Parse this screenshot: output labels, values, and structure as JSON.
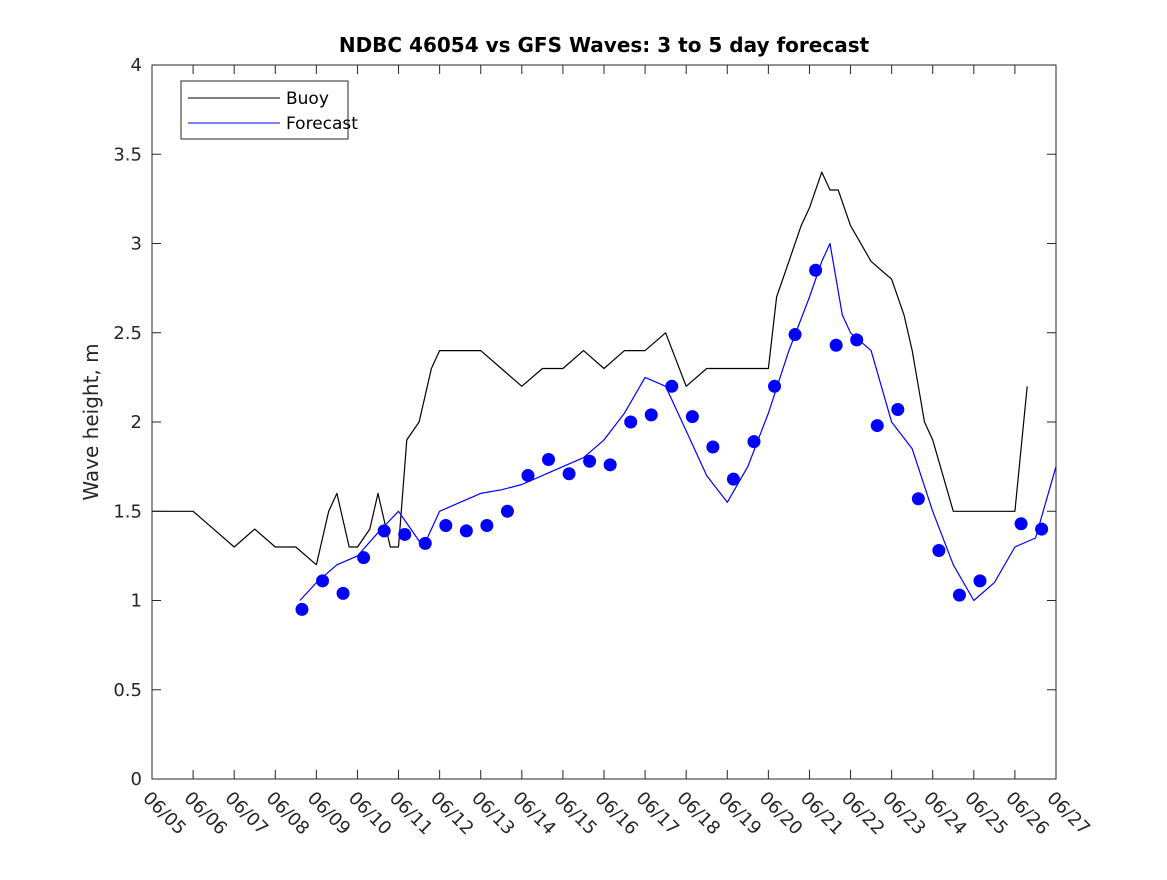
{
  "chart_data": {
    "type": "line",
    "title": "NDBC 46054 vs GFS Waves: 3 to 5 day forecast",
    "xlabel": "",
    "ylabel": "Wave height, m",
    "xlim": [
      "06/05",
      "06/27"
    ],
    "ylim": [
      0,
      4
    ],
    "y_ticks": [
      0,
      0.5,
      1,
      1.5,
      2,
      2.5,
      3,
      3.5,
      4
    ],
    "x_ticks": [
      "06/05",
      "06/06",
      "06/07",
      "06/08",
      "06/09",
      "06/10",
      "06/11",
      "06/12",
      "06/13",
      "06/14",
      "06/15",
      "06/16",
      "06/17",
      "06/18",
      "06/19",
      "06/20",
      "06/21",
      "06/22",
      "06/23",
      "06/24",
      "06/25",
      "06/26",
      "06/27"
    ],
    "grid": false,
    "legend": {
      "placement": "top-left",
      "entries": [
        "Buoy",
        "Forecast"
      ]
    },
    "colors": {
      "buoy": "#000000",
      "forecast": "#0000ff",
      "axes": "#262626"
    },
    "series": [
      {
        "name": "Buoy",
        "style": "line",
        "x": [
          5.0,
          5.5,
          6.0,
          6.5,
          7.0,
          7.5,
          8.0,
          8.5,
          9.0,
          9.3,
          9.5,
          9.8,
          10.0,
          10.3,
          10.5,
          10.8,
          11.0,
          11.2,
          11.5,
          11.8,
          12.0,
          12.5,
          13.0,
          13.5,
          14.0,
          14.5,
          15.0,
          15.5,
          16.0,
          16.5,
          17.0,
          17.5,
          18.0,
          18.5,
          19.0,
          19.5,
          20.0,
          20.2,
          20.5,
          20.8,
          21.0,
          21.3,
          21.5,
          21.7,
          22.0,
          22.5,
          23.0,
          23.3,
          23.5,
          23.8,
          24.0,
          24.5,
          25.0,
          25.5,
          26.0,
          26.3
        ],
        "y": [
          1.5,
          1.5,
          1.5,
          1.4,
          1.3,
          1.4,
          1.3,
          1.3,
          1.2,
          1.5,
          1.6,
          1.3,
          1.3,
          1.4,
          1.6,
          1.3,
          1.3,
          1.9,
          2.0,
          2.3,
          2.4,
          2.4,
          2.4,
          2.3,
          2.2,
          2.3,
          2.3,
          2.4,
          2.3,
          2.4,
          2.4,
          2.5,
          2.2,
          2.3,
          2.3,
          2.3,
          2.3,
          2.7,
          2.9,
          3.1,
          3.2,
          3.4,
          3.3,
          3.3,
          3.1,
          2.9,
          2.8,
          2.6,
          2.4,
          2.0,
          1.9,
          1.5,
          1.5,
          1.5,
          1.5,
          2.2
        ]
      },
      {
        "name": "Forecast",
        "style": "line",
        "x": [
          8.6,
          9.0,
          9.5,
          10.0,
          10.5,
          11.0,
          11.3,
          11.6,
          12.0,
          12.5,
          13.0,
          13.5,
          14.0,
          14.5,
          15.0,
          15.5,
          16.0,
          16.5,
          17.0,
          17.5,
          18.0,
          18.5,
          19.0,
          19.5,
          20.0,
          20.5,
          21.0,
          21.3,
          21.5,
          21.8,
          22.0,
          22.5,
          23.0,
          23.5,
          24.0,
          24.5,
          25.0,
          25.5,
          26.0,
          26.5,
          27.0
        ],
        "y": [
          1.0,
          1.1,
          1.2,
          1.25,
          1.38,
          1.5,
          1.4,
          1.3,
          1.5,
          1.55,
          1.6,
          1.62,
          1.65,
          1.7,
          1.75,
          1.8,
          1.9,
          2.05,
          2.25,
          2.2,
          1.95,
          1.7,
          1.55,
          1.75,
          2.05,
          2.4,
          2.7,
          2.9,
          3.0,
          2.6,
          2.5,
          2.4,
          2.0,
          1.85,
          1.5,
          1.2,
          1.0,
          1.1,
          1.3,
          1.35,
          1.75
        ]
      },
      {
        "name": "",
        "style": "markers",
        "x": [
          8.65,
          9.15,
          9.65,
          10.15,
          10.65,
          11.15,
          11.65,
          12.15,
          12.65,
          13.15,
          13.65,
          14.15,
          14.65,
          15.15,
          15.65,
          16.15,
          16.65,
          17.15,
          17.65,
          18.15,
          18.65,
          19.15,
          19.65,
          20.15,
          20.65,
          21.15,
          21.65,
          22.15,
          22.65,
          23.15,
          23.65,
          24.15,
          24.65,
          25.15,
          26.15,
          26.65
        ],
        "y": [
          0.95,
          1.11,
          1.04,
          1.24,
          1.39,
          1.37,
          1.32,
          1.42,
          1.39,
          1.42,
          1.5,
          1.7,
          1.79,
          1.71,
          1.78,
          1.76,
          2.0,
          2.04,
          2.2,
          2.03,
          1.86,
          1.68,
          1.89,
          2.2,
          2.49,
          2.85,
          2.43,
          2.46,
          1.98,
          2.07,
          1.57,
          1.28,
          1.03,
          1.11,
          1.43,
          1.4
        ]
      }
    ]
  }
}
